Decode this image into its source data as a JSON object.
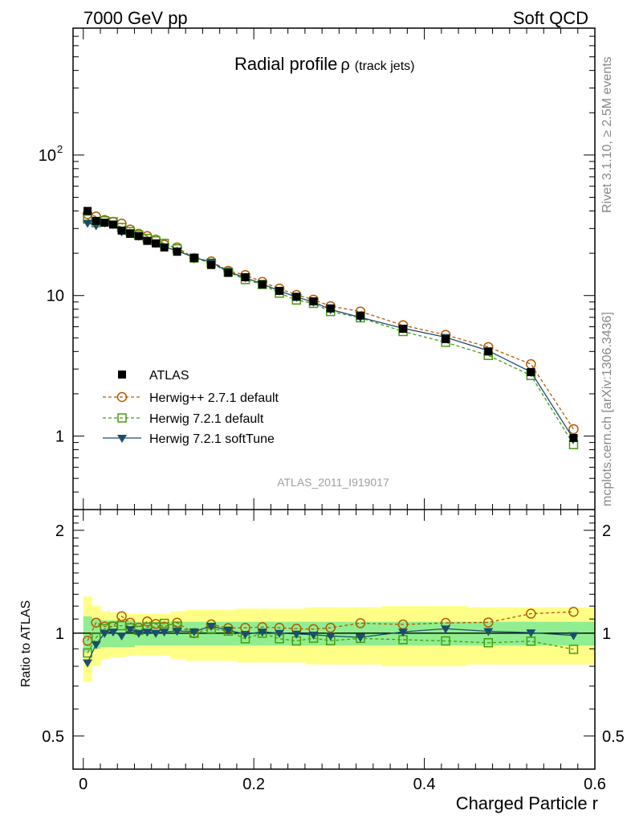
{
  "header": {
    "left": "7000 GeV pp",
    "right": "Soft QCD"
  },
  "side_text": {
    "rivet": "Rivet 3.1.10, ≥ 2.5M events",
    "mcplots": "mcplots.cern.ch [arXiv:1306.3436]"
  },
  "chart_data": {
    "type": "line",
    "title": "Radial profile",
    "title_symbol": "ρ",
    "title_suffix": "(track jets)",
    "watermark": "ATLAS_2011_I919017",
    "xlabel": "Charged Particle r",
    "ylabel_ratio": "Ratio to ATLAS",
    "xlim": [
      -0.012,
      0.6
    ],
    "ylim_main": [
      0.3,
      800
    ],
    "ylim_ratio": [
      0.4,
      2.3
    ],
    "yscale": "log",
    "x_ticks": [
      "0",
      "0.2",
      "0.4",
      "0.6"
    ],
    "main_y_ticks": [
      "1",
      "10",
      "10",
      "2"
    ],
    "ratio_y_ticks": [
      "0.5",
      "1",
      "2"
    ],
    "legend_position": "lower-left",
    "x": [
      0.005,
      0.015,
      0.025,
      0.035,
      0.045,
      0.055,
      0.065,
      0.075,
      0.085,
      0.095,
      0.11,
      0.13,
      0.15,
      0.17,
      0.19,
      0.21,
      0.23,
      0.25,
      0.27,
      0.29,
      0.325,
      0.375,
      0.425,
      0.475,
      0.525,
      0.575
    ],
    "series": [
      {
        "name": "ATLAS",
        "color": "#000000",
        "marker": "square-filled",
        "values": [
          40,
          34,
          33,
          32,
          29,
          27.5,
          26.5,
          24.5,
          23.5,
          22,
          20.5,
          18.5,
          16.5,
          14.5,
          13.5,
          12,
          10.8,
          9.8,
          9.1,
          8.1,
          7.2,
          5.8,
          4.9,
          4.0,
          2.85,
          0.97
        ]
      },
      {
        "name": "Herwig++ 2.7.1 default",
        "color": "#b35a00",
        "marker": "circle-open",
        "values": [
          38,
          36.5,
          34.5,
          33.5,
          32.5,
          29.5,
          27.5,
          26.5,
          25.0,
          23.0,
          22.0,
          18.5,
          17.5,
          15.0,
          14.0,
          12.5,
          11.2,
          10.1,
          9.35,
          8.4,
          7.7,
          6.15,
          5.25,
          4.3,
          3.25,
          1.12
        ]
      },
      {
        "name": "Herwig 7.2.1 default",
        "color": "#4a9a0f",
        "marker": "square-open",
        "values": [
          35,
          33,
          34,
          33.5,
          30.5,
          28.5,
          27,
          25.5,
          24.5,
          23.5,
          21.5,
          18.5,
          17,
          14.7,
          13,
          12,
          10.4,
          9.3,
          8.8,
          7.7,
          6.95,
          5.55,
          4.65,
          3.75,
          2.7,
          0.87
        ]
      },
      {
        "name": "Herwig 7.2.1 softTune",
        "color": "#1a4f6b",
        "marker": "triangle-down-filled",
        "values": [
          32.8,
          31.5,
          33,
          32.3,
          28.5,
          28.2,
          26.5,
          24.7,
          23.5,
          22.2,
          20.8,
          18.7,
          17.3,
          14.8,
          13.4,
          12.1,
          10.8,
          9.75,
          9.0,
          7.95,
          7.0,
          5.85,
          5.05,
          4.05,
          2.86,
          0.955
        ]
      }
    ],
    "ratio_band_inner": [
      0.12,
      0.1,
      0.09,
      0.09,
      0.09,
      0.09,
      0.08,
      0.08,
      0.08,
      0.08,
      0.08,
      0.08,
      0.08,
      0.08,
      0.08,
      0.08,
      0.08,
      0.08,
      0.08,
      0.08,
      0.08,
      0.08,
      0.08,
      0.08,
      0.08,
      0.08
    ],
    "ratio_band_outer": [
      0.28,
      0.2,
      0.16,
      0.15,
      0.15,
      0.14,
      0.14,
      0.14,
      0.14,
      0.14,
      0.16,
      0.17,
      0.17,
      0.17,
      0.18,
      0.18,
      0.18,
      0.18,
      0.19,
      0.19,
      0.19,
      0.2,
      0.2,
      0.19,
      0.19,
      0.19
    ],
    "colors": {
      "band_inner": "#90ee90",
      "band_outer": "#ffff88"
    }
  }
}
